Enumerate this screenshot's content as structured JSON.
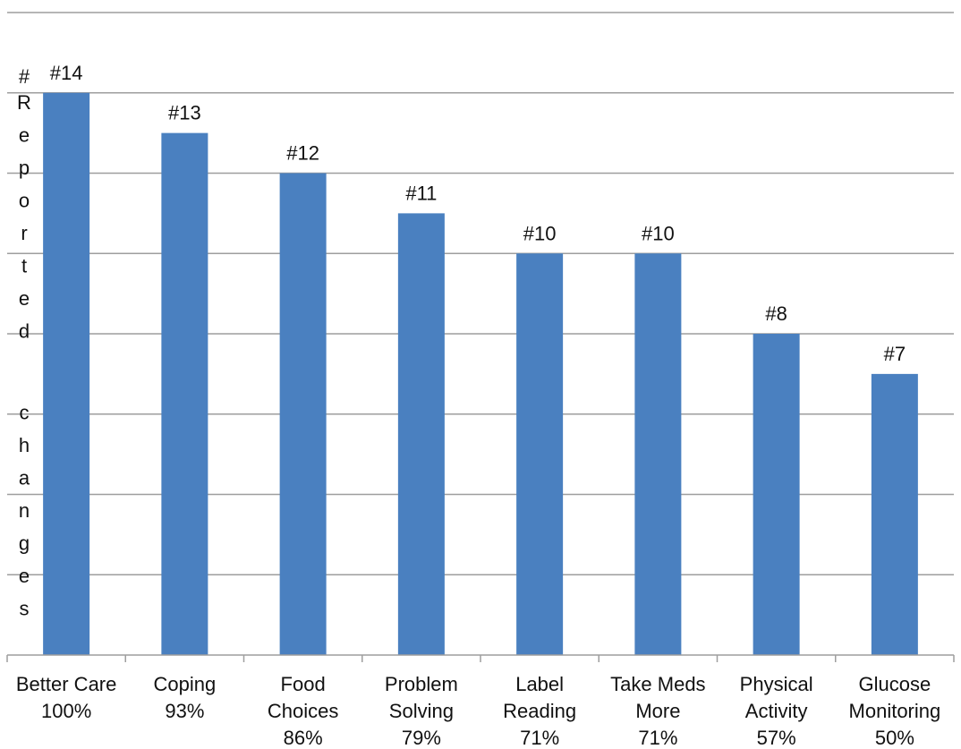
{
  "chart_data": {
    "type": "bar",
    "title": "",
    "xlabel": "",
    "ylabel": "# Reported changes",
    "categories": [
      [
        "Better Care",
        "100%"
      ],
      [
        "Coping",
        "93%"
      ],
      [
        "Food",
        "Choices",
        "86%"
      ],
      [
        "Problem",
        "Solving",
        "79%"
      ],
      [
        "Label",
        "Reading",
        "71%"
      ],
      [
        "Take Meds",
        "More",
        "71%"
      ],
      [
        "Physical",
        "Activity",
        "57%"
      ],
      [
        "Glucose",
        "Monitoring",
        "50%"
      ]
    ],
    "values": [
      14,
      13,
      12,
      11,
      10,
      10,
      8,
      7
    ],
    "data_labels": [
      "#14",
      "#13",
      "#12",
      "#11",
      "#10",
      "#10",
      "#8",
      "#7"
    ],
    "ylim": [
      0,
      16
    ],
    "grid": true,
    "legend": "none",
    "colors": {
      "bar": "#4a80c0",
      "grid": "#9e9e9e",
      "axis": "#9e9e9e",
      "text": "#111111"
    }
  }
}
